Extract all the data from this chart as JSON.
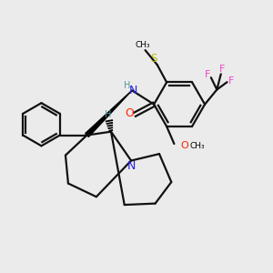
{
  "background_color": "#ebebeb",
  "atom_colors": {
    "N": "#2222dd",
    "O": "#ff2200",
    "S": "#bbbb00",
    "F": "#ee44cc",
    "C": "#000000",
    "H": "#559999"
  },
  "bond_color": "#111111",
  "bond_width": 1.6
}
